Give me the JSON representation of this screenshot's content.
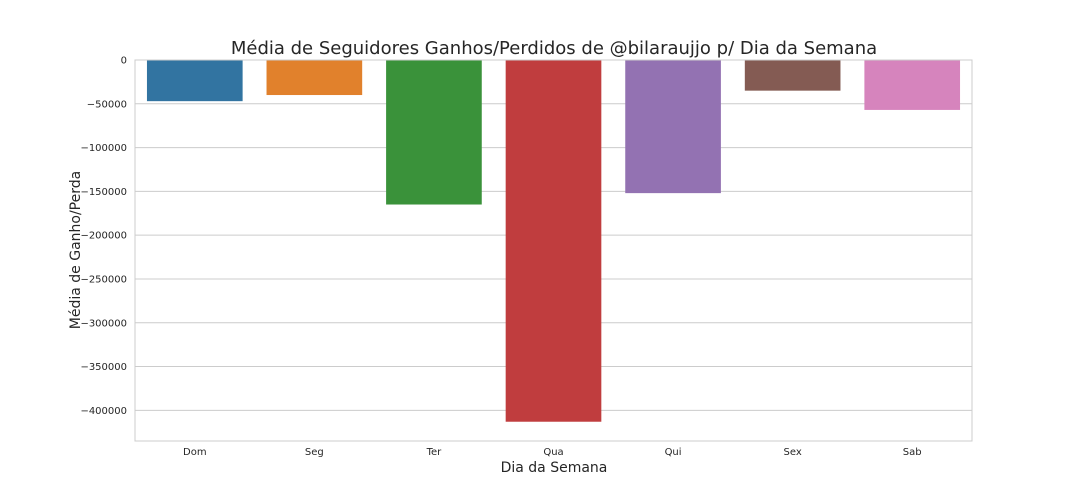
{
  "chart_data": {
    "type": "bar",
    "title": "Média de Seguidores Ganhos/Perdidos de @bilaraujjo p/ Dia da Semana",
    "xlabel": "Dia da Semana",
    "ylabel": "Média de Ganho/Perda",
    "categories": [
      "Dom",
      "Seg",
      "Ter",
      "Qua",
      "Qui",
      "Sex",
      "Sab"
    ],
    "values": [
      -47000,
      -40000,
      -165000,
      -413000,
      -152000,
      -35000,
      -57000
    ],
    "colors": [
      "#3274a1",
      "#e1812c",
      "#3a923a",
      "#c03d3e",
      "#9372b2",
      "#845b53",
      "#d684bd"
    ],
    "yticks": [
      0,
      -50000,
      -100000,
      -150000,
      -200000,
      -250000,
      -300000,
      -350000,
      -400000
    ],
    "ylim": [
      -435000,
      0
    ],
    "grid": true,
    "legend": "none"
  }
}
